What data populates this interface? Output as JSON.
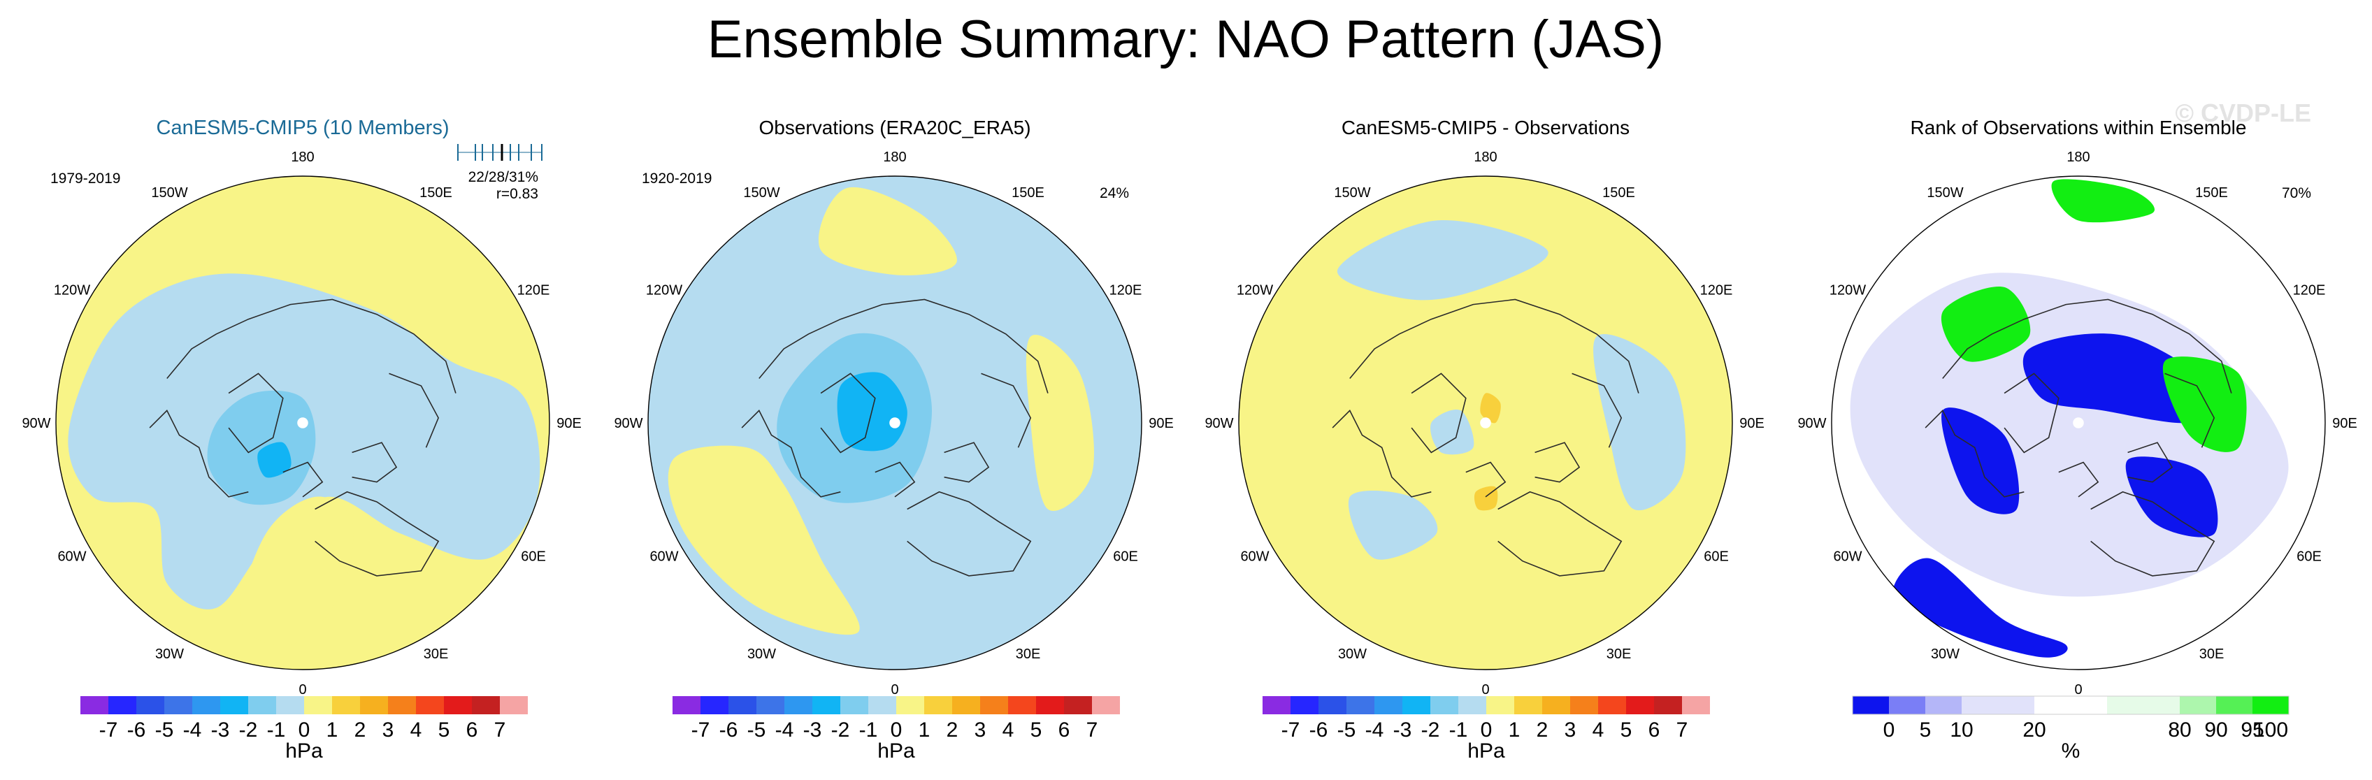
{
  "figure": {
    "title": "Ensemble Summary: NAO Pattern (JAS)",
    "watermark": "© CVDP-LE"
  },
  "colors": {
    "pal_nao": [
      "#8a2be2",
      "#2626ff",
      "#2b52e8",
      "#3d74e8",
      "#2e97f0",
      "#11b4f4",
      "#7fcdee",
      "#b5dcf0",
      "#f8f487",
      "#f8d03c",
      "#f6b01f",
      "#f5801b",
      "#f4461d",
      "#e31b1b",
      "#c42121",
      "#f5a4a4"
    ],
    "pal_rank": [
      "#0d14ee",
      "#7a7ef6",
      "#b4b6f8",
      "#e1e2fa",
      "#ffffff",
      "#e6fbe8",
      "#adf6ad",
      "#55f055",
      "#12ee12"
    ],
    "coast": "#2a2a2a",
    "member_label": "#1a6a96"
  },
  "panels": [
    {
      "title": "CanESM5-CMIP5 (10 Members)",
      "period": "1979-2019",
      "stats_line1": "22/28/31%",
      "stats_line2": "r=0.83",
      "corner_pct": "",
      "has_member_ticks": true
    },
    {
      "title": "Observations (ERA20C_ERA5)",
      "period": "1920-2019",
      "stats_line1": "",
      "stats_line2": "",
      "corner_pct": "24%",
      "has_member_ticks": false
    },
    {
      "title": "CanESM5-CMIP5 - Observations",
      "period": "",
      "stats_line1": "",
      "stats_line2": "",
      "corner_pct": "",
      "has_member_ticks": false
    },
    {
      "title": "Rank of Observations within Ensemble",
      "period": "",
      "stats_line1": "",
      "stats_line2": "",
      "corner_pct": "70%",
      "has_member_ticks": false
    }
  ],
  "lon_labels": [
    "180",
    "150E",
    "120E",
    "90E",
    "60E",
    "30E",
    "0",
    "30W",
    "60W",
    "90W",
    "120W",
    "150W"
  ],
  "colorbar_nao": {
    "tick_labels": [
      "-7",
      "-6",
      "-5",
      "-4",
      "-3",
      "-2",
      "-1",
      "0",
      "1",
      "2",
      "3",
      "4",
      "5",
      "6",
      "7"
    ],
    "unit": "hPa"
  },
  "colorbar_rank": {
    "tick_labels": [
      "0",
      "5",
      "10",
      "20",
      "80",
      "90",
      "95",
      "100"
    ],
    "unit": "%"
  },
  "chart_data": [
    {
      "type": "heatmap",
      "title": "CanESM5-CMIP5 (10 Members)",
      "projection": "north polar stereographic",
      "levels_hPa": [
        -7,
        -6,
        -5,
        -4,
        -3,
        -2,
        -1,
        0,
        1,
        2,
        3,
        4,
        5,
        6,
        7
      ],
      "approx_min_hPa": -3.5,
      "approx_max_hPa": 1,
      "features": [
        "negative center over Greenland/Iceland",
        "positive belt across mid-latitude Atlantic, Europe and Pacific"
      ]
    },
    {
      "type": "heatmap",
      "title": "Observations (ERA20C_ERA5)",
      "projection": "north polar stereographic",
      "levels_hPa": [
        -7,
        -6,
        -5,
        -4,
        -3,
        -2,
        -1,
        0,
        1,
        2,
        3,
        4,
        5,
        6,
        7
      ],
      "approx_min_hPa": -3.5,
      "approx_max_hPa": 1,
      "explained_variance": "24%"
    },
    {
      "type": "heatmap",
      "title": "CanESM5-CMIP5 - Observations",
      "projection": "north polar stereographic",
      "levels_hPa": [
        -7,
        -6,
        -5,
        -4,
        -3,
        -2,
        -1,
        0,
        1,
        2,
        3,
        4,
        5,
        6,
        7
      ],
      "approx_min_hPa": -1,
      "approx_max_hPa": 2
    },
    {
      "type": "heatmap",
      "title": "Rank of Observations within Ensemble",
      "projection": "north polar stereographic",
      "levels_pct": [
        0,
        5,
        10,
        20,
        80,
        90,
        95,
        100
      ],
      "fraction_within_range": "70%"
    }
  ]
}
